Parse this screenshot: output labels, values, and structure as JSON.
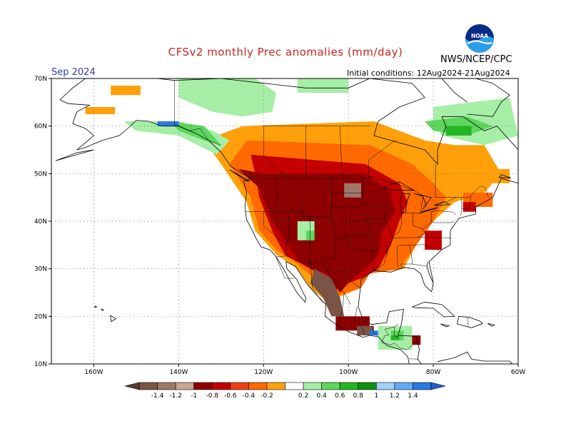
{
  "title": "CFSv2 monthly Prec anomalies (mm/day)",
  "month": "Sep 2024",
  "agency": "NWS/NCEP/CPC",
  "initial_conditions": "Initial conditions: 12Aug2024-21Aug2024",
  "logo": {
    "text": "NOAA"
  },
  "map": {
    "lon_range": [
      -170,
      -60
    ],
    "lat_range": [
      10,
      70
    ],
    "lat_ticks": [
      "70N",
      "60N",
      "50N",
      "40N",
      "30N",
      "20N",
      "10N"
    ],
    "lon_ticks": [
      "160W",
      "140W",
      "120W",
      "100W",
      "80W",
      "60W"
    ]
  },
  "colorbar": {
    "labels": [
      "-1.4",
      "-1.2",
      "-1",
      "-0.8",
      "-0.6",
      "-0.4",
      "-0.2",
      "0.2",
      "0.4",
      "0.6",
      "0.8",
      "1",
      "1.2",
      "1.4"
    ],
    "colors": [
      "#7a5446",
      "#a0786a",
      "#c8a494",
      "#8e0000",
      "#c40000",
      "#f03c14",
      "#ff6a00",
      "#ffa00a",
      "#ffffff",
      "#a6eea6",
      "#5cd65c",
      "#23b623",
      "#0f8f0f",
      "#a0d2fa",
      "#64aaf0",
      "#2878e6"
    ]
  },
  "anomaly_regions": [
    {
      "category": "-0.2",
      "color": "#ffa00a",
      "polys": [
        [
          [
            -156,
            68.5
          ],
          [
            -149,
            68.5
          ],
          [
            -149,
            66.5
          ],
          [
            -156,
            66.5
          ]
        ],
        [
          [
            -162,
            64
          ],
          [
            -155,
            64
          ],
          [
            -155,
            62.5
          ],
          [
            -162,
            62.5
          ]
        ],
        [
          [
            -125,
            60
          ],
          [
            -94,
            61
          ],
          [
            -82,
            57
          ],
          [
            -75,
            56
          ],
          [
            -68,
            56
          ],
          [
            -64,
            50
          ],
          [
            -68,
            46
          ],
          [
            -75,
            44
          ],
          [
            -80,
            40
          ],
          [
            -84,
            35
          ],
          [
            -87,
            30
          ],
          [
            -95,
            29
          ],
          [
            -97,
            26
          ],
          [
            -105,
            23
          ],
          [
            -109,
            26
          ],
          [
            -112,
            30
          ],
          [
            -117,
            33
          ],
          [
            -122,
            38
          ],
          [
            -124,
            44
          ],
          [
            -130,
            52
          ],
          [
            -134,
            57
          ]
        ],
        [
          [
            -70,
            51
          ],
          [
            -62,
            51
          ],
          [
            -62,
            48
          ],
          [
            -70,
            48
          ]
        ]
      ]
    },
    {
      "category": "-0.4",
      "color": "#ff6a00",
      "polys": [
        [
          [
            -124,
            57
          ],
          [
            -95,
            56
          ],
          [
            -85,
            52
          ],
          [
            -80,
            48
          ],
          [
            -77,
            45
          ],
          [
            -80,
            40
          ],
          [
            -84,
            35
          ],
          [
            -88,
            30
          ],
          [
            -95,
            29
          ],
          [
            -97,
            26
          ],
          [
            -104,
            24
          ],
          [
            -108,
            28
          ],
          [
            -112,
            31
          ],
          [
            -117,
            34
          ],
          [
            -121,
            38
          ],
          [
            -123,
            45
          ],
          [
            -128,
            52
          ]
        ],
        [
          [
            -73,
            46
          ],
          [
            -66,
            46
          ],
          [
            -66,
            43
          ],
          [
            -73,
            43
          ]
        ]
      ]
    },
    {
      "category": "-0.6",
      "color": "#c40000",
      "polys": [
        [
          [
            -123,
            54
          ],
          [
            -110,
            53
          ],
          [
            -96,
            52
          ],
          [
            -88,
            48
          ],
          [
            -86,
            44
          ],
          [
            -88,
            40
          ],
          [
            -90,
            35
          ],
          [
            -93,
            30
          ],
          [
            -97,
            28
          ],
          [
            -100,
            27
          ],
          [
            -104,
            25
          ],
          [
            -107,
            29
          ],
          [
            -111,
            31
          ],
          [
            -115,
            33
          ],
          [
            -118,
            38
          ],
          [
            -121,
            45
          ],
          [
            -122,
            50
          ]
        ],
        [
          [
            -82,
            38
          ],
          [
            -78,
            38
          ],
          [
            -78,
            34
          ],
          [
            -82,
            34
          ]
        ],
        [
          [
            -73,
            44
          ],
          [
            -70,
            44
          ],
          [
            -70,
            42
          ],
          [
            -73,
            42
          ]
        ]
      ]
    },
    {
      "category": "-0.8",
      "color": "#8e0000",
      "polys": [
        [
          [
            -126,
            51
          ],
          [
            -120,
            50
          ],
          [
            -110,
            50
          ],
          [
            -96,
            50
          ],
          [
            -90,
            46
          ],
          [
            -89,
            42
          ],
          [
            -92,
            38
          ],
          [
            -93,
            33
          ],
          [
            -96,
            30
          ],
          [
            -99,
            28
          ],
          [
            -102,
            25
          ],
          [
            -105,
            29
          ],
          [
            -109,
            30
          ],
          [
            -112,
            32
          ],
          [
            -115,
            36
          ],
          [
            -118,
            40
          ],
          [
            -121,
            47
          ]
        ],
        [
          [
            -103,
            20
          ],
          [
            -95,
            20
          ],
          [
            -95,
            17
          ],
          [
            -103,
            17
          ]
        ],
        [
          [
            -86,
            16
          ],
          [
            -83,
            16
          ],
          [
            -83,
            14
          ],
          [
            -86,
            14
          ]
        ]
      ]
    },
    {
      "category": "-1.2",
      "color": "#a0786a",
      "polys": [
        [
          [
            -101,
            48
          ],
          [
            -97,
            48
          ],
          [
            -97,
            45
          ],
          [
            -101,
            45
          ]
        ]
      ]
    },
    {
      "category": "-1.4",
      "color": "#7a5446",
      "polys": [
        [
          [
            -108,
            30
          ],
          [
            -104,
            28
          ],
          [
            -102,
            24
          ],
          [
            -101,
            20
          ],
          [
            -104,
            20
          ],
          [
            -106,
            24
          ],
          [
            -109,
            27
          ]
        ],
        [
          [
            -98,
            18
          ],
          [
            -94,
            18
          ],
          [
            -94,
            16
          ],
          [
            -98,
            16
          ]
        ]
      ]
    },
    {
      "category": "0.2",
      "color": "#a6eea6",
      "polys": [
        [
          [
            -140,
            70
          ],
          [
            -122,
            70
          ],
          [
            -117,
            67
          ],
          [
            -118,
            63
          ],
          [
            -125,
            62
          ],
          [
            -132,
            63
          ],
          [
            -140,
            66
          ]
        ],
        [
          [
            -112,
            70
          ],
          [
            -100,
            70
          ],
          [
            -100,
            67
          ],
          [
            -112,
            67
          ]
        ],
        [
          [
            -80,
            64
          ],
          [
            -62,
            66
          ],
          [
            -60,
            58
          ],
          [
            -68,
            56
          ],
          [
            -78,
            58
          ],
          [
            -80,
            61
          ]
        ],
        [
          [
            -153,
            61
          ],
          [
            -140,
            61
          ],
          [
            -132,
            59
          ],
          [
            -128,
            57
          ],
          [
            -131,
            54
          ],
          [
            -140,
            58
          ],
          [
            -150,
            59
          ]
        ],
        [
          [
            -112,
            40
          ],
          [
            -108,
            40
          ],
          [
            -108,
            36
          ],
          [
            -112,
            36
          ]
        ],
        [
          [
            -93,
            18
          ],
          [
            -85,
            18
          ],
          [
            -85,
            13
          ],
          [
            -93,
            13
          ]
        ]
      ]
    },
    {
      "category": "0.4",
      "color": "#5cd65c",
      "polys": [
        [
          [
            -82,
            61
          ],
          [
            -72,
            62
          ],
          [
            -66,
            60
          ],
          [
            -72,
            58
          ],
          [
            -80,
            59
          ]
        ],
        [
          [
            -142,
            61
          ],
          [
            -134,
            60
          ],
          [
            -130,
            56
          ],
          [
            -134,
            57
          ],
          [
            -140,
            59
          ]
        ],
        [
          [
            -110,
            38
          ],
          [
            -108,
            38
          ],
          [
            -108,
            36
          ],
          [
            -110,
            36
          ]
        ],
        [
          [
            -90,
            17
          ],
          [
            -87,
            17
          ],
          [
            -87,
            15
          ],
          [
            -90,
            15
          ]
        ]
      ]
    },
    {
      "category": "0.6",
      "color": "#23b623",
      "polys": [
        [
          [
            -77,
            60
          ],
          [
            -71,
            60
          ],
          [
            -71,
            58
          ],
          [
            -77,
            58
          ]
        ],
        [
          [
            -90,
            16
          ],
          [
            -88,
            16
          ],
          [
            -88,
            15
          ],
          [
            -90,
            15
          ]
        ]
      ]
    },
    {
      "category": "1.4",
      "color": "#2878e6",
      "polys": [
        [
          [
            -145,
            61
          ],
          [
            -140,
            61
          ],
          [
            -140,
            60
          ],
          [
            -145,
            60
          ]
        ],
        [
          [
            -95,
            17
          ],
          [
            -93,
            17
          ],
          [
            -93,
            16
          ],
          [
            -95,
            16
          ]
        ]
      ]
    }
  ]
}
